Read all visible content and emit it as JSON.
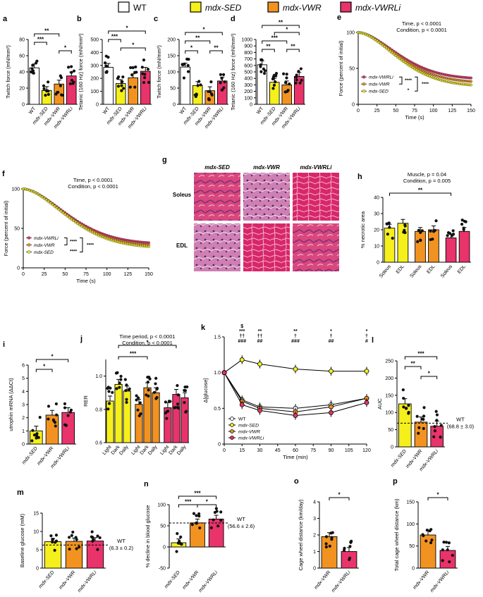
{
  "legend": [
    {
      "label": "WT",
      "color": "#ffffff"
    },
    {
      "label": "mdx-SED",
      "color": "#f5ef1c"
    },
    {
      "label": "mdx-VWR",
      "color": "#f29321"
    },
    {
      "label": "mdx-VWRLi",
      "color": "#e8336b"
    }
  ],
  "colors": {
    "WT": "#ffffff",
    "SED": "#f5ef1c",
    "VWR": "#f29321",
    "VWRLi": "#e8336b",
    "axis": "#000000"
  },
  "chart_data": [
    {
      "id": "a",
      "type": "bar",
      "panel": "a",
      "categories": [
        "WT",
        "mdx-SED",
        "mdx-VWR",
        "mdx-VWRLi"
      ],
      "values": [
        45,
        17,
        25,
        35
      ],
      "ylabel": "Twitch force (mN/mm²)",
      "ylim": [
        0,
        80
      ],
      "yticks": [
        "0",
        "20",
        "40",
        "60",
        "80"
      ],
      "sig": [
        "**",
        "***",
        "*"
      ]
    },
    {
      "id": "b",
      "type": "bar",
      "panel": "b",
      "categories": [
        "WT",
        "mdx-SED",
        "mdx-VWR",
        "mdx-VWRLi"
      ],
      "values": [
        285,
        160,
        205,
        255
      ],
      "ylabel": "Tetanic (160 Hz) force (mN/mm²)",
      "ylim": [
        0,
        500
      ],
      "yticks": [
        "0",
        "100",
        "200",
        "300",
        "400",
        "500"
      ],
      "sig": [
        "*",
        "***",
        "*"
      ]
    },
    {
      "id": "c",
      "type": "bar",
      "panel": "c",
      "categories": [
        "WT",
        "mdx-SED",
        "mdx-VWR",
        "mdx-VWRLi"
      ],
      "values": [
        115,
        58,
        42,
        72
      ],
      "ylabel": "Twitch force (mN/mm²)",
      "ylim": [
        0,
        200
      ],
      "yticks": [
        "0",
        "50",
        "100",
        "150",
        "200"
      ],
      "sig": [
        "*",
        "**",
        "*",
        "**"
      ]
    },
    {
      "id": "d",
      "type": "bar",
      "panel": "d",
      "categories": [
        "WT",
        "mdx-SED",
        "mdx-VWR",
        "mdx-VWRLi"
      ],
      "values": [
        610,
        340,
        300,
        430
      ],
      "ylabel": "Tetanic (160 Hz) force (mN/mm²)",
      "ylim": [
        0,
        1000
      ],
      "yticks": [
        "0",
        "100",
        "200",
        "300",
        "400",
        "500",
        "600",
        "700",
        "800",
        "900",
        "1000"
      ],
      "sig": [
        "**",
        "*",
        "***",
        "**",
        "**"
      ]
    },
    {
      "id": "e",
      "type": "line",
      "panel": "e",
      "title": "Time, p < 0.0001",
      "subtitle": "Condition, p < 0.0001",
      "xlabel": "Time (s)",
      "ylabel": "Force (percent of initial)",
      "xlim": [
        0,
        150
      ],
      "ylim": [
        0,
        100
      ],
      "xticks": [
        "0",
        "25",
        "50",
        "75",
        "100",
        "125",
        "150"
      ],
      "yticks": [
        "0",
        "50",
        "100"
      ],
      "series": [
        {
          "name": "mdx-VWRLi",
          "end": 35
        },
        {
          "name": "mdx-VWR",
          "end": 30
        },
        {
          "name": "mdx-SED",
          "end": 25
        }
      ],
      "sig": [
        "****",
        "****",
        "*"
      ]
    },
    {
      "id": "f",
      "type": "line",
      "panel": "f",
      "title": "Time, p < 0.0001",
      "subtitle": "Condition, p < 0.0001",
      "xlabel": "Time (s)",
      "ylabel": "Force (percent of initial)",
      "xlim": [
        0,
        150
      ],
      "ylim": [
        0,
        100
      ],
      "xticks": [
        "0",
        "25",
        "50",
        "75",
        "100",
        "125",
        "150"
      ],
      "yticks": [
        "0",
        "50",
        "100"
      ],
      "series": [
        {
          "name": "mdx-VWRLi",
          "end": 30
        },
        {
          "name": "mdx-VWR",
          "end": 27
        },
        {
          "name": "mdx-SED",
          "end": 25
        }
      ],
      "sig": [
        "****",
        "****",
        "****"
      ]
    },
    {
      "id": "h",
      "type": "bar",
      "panel": "h",
      "title": "Muscle, p = 0.04",
      "subtitle": "Condition, p = 0.005",
      "categories": [
        "Soleus",
        "EDL",
        "Soleus",
        "EDL",
        "Soleus",
        "EDL"
      ],
      "values": [
        21,
        24,
        19,
        20,
        15,
        19
      ],
      "ylabel": "% necrotic area",
      "ylim": [
        0,
        40
      ],
      "yticks": [
        "0",
        "10",
        "20",
        "30",
        "40"
      ],
      "sig": [
        "**"
      ]
    },
    {
      "id": "i",
      "type": "bar",
      "panel": "i",
      "categories": [
        "mdx-SED",
        "mdx-VWR",
        "mdx-VWRLi"
      ],
      "values": [
        1.0,
        2.2,
        2.4
      ],
      "ylabel": "utrophin mRNA (ΔΔCt)",
      "ylim": [
        0,
        6
      ],
      "yticks": [
        "0",
        "1",
        "2",
        "3",
        "4",
        "5",
        "6"
      ],
      "sig": [
        "*",
        "*"
      ]
    },
    {
      "id": "j",
      "type": "bar",
      "panel": "j",
      "title": "Time period, p < 0.0001",
      "subtitle": "Condition, p < 0.0001",
      "categories": [
        "Light",
        "Dark",
        "Daily",
        "Light",
        "Dark",
        "Daily",
        "Light",
        "Dark",
        "Daily"
      ],
      "values": [
        0.85,
        0.95,
        0.91,
        0.83,
        0.93,
        0.9,
        0.81,
        0.89,
        0.87
      ],
      "ylabel": "RER",
      "ylim": [
        0.6,
        1.1
      ],
      "yticks": [
        "0.6",
        "0.8",
        "1.0"
      ],
      "sig": [
        "*",
        "***"
      ]
    },
    {
      "id": "k",
      "type": "line",
      "panel": "k",
      "xlabel": "Time (min)",
      "ylabel": "Δ[glucose]",
      "xlim": [
        0,
        120
      ],
      "ylim": [
        0,
        1.5
      ],
      "xticks": [
        "0",
        "15",
        "30",
        "45",
        "60",
        "75",
        "90",
        "105",
        "120"
      ],
      "yticks": [
        "0",
        "0.5",
        "1.0",
        "1.5"
      ],
      "x": [
        0,
        15,
        30,
        60,
        90,
        120
      ],
      "series": [
        {
          "name": "WT",
          "values": [
            1.0,
            0.62,
            0.52,
            0.5,
            0.55,
            0.64
          ]
        },
        {
          "name": "mdx-SED",
          "values": [
            1.0,
            1.18,
            1.12,
            1.05,
            1.02,
            1.02
          ]
        },
        {
          "name": "mdx-VWR",
          "values": [
            1.0,
            0.6,
            0.5,
            0.45,
            0.52,
            0.64
          ]
        },
        {
          "name": "mdx-VWRLi",
          "values": [
            1.0,
            0.55,
            0.47,
            0.4,
            0.44,
            0.58
          ]
        }
      ],
      "annotations": [
        {
          "x": 15,
          "text": [
            "$",
            "***",
            "††",
            "###"
          ]
        },
        {
          "x": 30,
          "text": [
            "**",
            "††",
            "##"
          ]
        },
        {
          "x": 60,
          "text": [
            "**",
            "†",
            "###"
          ]
        },
        {
          "x": 90,
          "text": [
            "*",
            "†",
            "##"
          ]
        },
        {
          "x": 120,
          "text": [
            "*",
            "†",
            "#"
          ]
        }
      ]
    },
    {
      "id": "l",
      "type": "bar",
      "panel": "l",
      "categories": [
        "mdx-SED",
        "mdx-VWR",
        "mdx-VWRLi"
      ],
      "values": [
        125,
        72,
        60
      ],
      "ylabel": "AUC",
      "ylim": [
        0,
        250
      ],
      "yticks": [
        "0",
        "50",
        "100",
        "150",
        "200",
        "250"
      ],
      "reference": {
        "value": 68.8,
        "label": "WT",
        "sub": "(68.8 ± 3.0)"
      },
      "sig": [
        "***",
        "**",
        "*"
      ]
    },
    {
      "id": "m",
      "type": "bar",
      "panel": "m",
      "categories": [
        "mdx-SED",
        "mdx-VWR",
        "mdx-VWRLi"
      ],
      "values": [
        7.2,
        7.3,
        7.4
      ],
      "ylabel": "Baseline glucose (mM)",
      "ylim": [
        0,
        15
      ],
      "yticks": [
        "0",
        "5",
        "10",
        "15"
      ],
      "reference": {
        "value": 6.3,
        "label": "WT",
        "sub": "(6.3 ± 0.2)"
      },
      "sig": []
    },
    {
      "id": "n",
      "type": "bar",
      "panel": "n",
      "categories": [
        "mdx-SED",
        "mdx-VWR",
        "mdx-VWRLi"
      ],
      "values": [
        10,
        57,
        66
      ],
      "ylabel": "% decline in blood glucose",
      "ylim": [
        -50,
        100
      ],
      "yticks": [
        "-50",
        "0",
        "50",
        "100"
      ],
      "reference": {
        "value": 56.6,
        "label": "WT",
        "sub": "(56.6 ± 2.6)"
      },
      "sig": [
        "***",
        "***",
        "*"
      ]
    },
    {
      "id": "o",
      "type": "bar",
      "panel": "o",
      "categories": [
        "mdx-VWR",
        "mdx-VWRLi"
      ],
      "values": [
        1.9,
        1.0
      ],
      "ylabel": "Cage wheel distance (km/day)",
      "ylim": [
        0,
        4
      ],
      "yticks": [
        "0",
        "1",
        "2",
        "3",
        "4"
      ],
      "sig": [
        "*"
      ]
    },
    {
      "id": "p",
      "type": "bar",
      "panel": "p",
      "categories": [
        "mdx-VWR",
        "mdx-VWRLi"
      ],
      "values": [
        75,
        40
      ],
      "ylabel": "Total cage wheel distance (km)",
      "ylim": [
        0,
        150
      ],
      "yticks": [
        "0",
        "50",
        "100",
        "150"
      ],
      "sig": [
        "*"
      ]
    }
  ],
  "histology": {
    "panel": "g",
    "columns": [
      "mdx-SED",
      "mdx-VWR",
      "mdx-VWRLi"
    ],
    "rows": [
      "Soleus",
      "EDL"
    ]
  },
  "k_legend": [
    "WT",
    "mdx-SED",
    "mdx-VWR",
    "mdx-VWRLi"
  ]
}
